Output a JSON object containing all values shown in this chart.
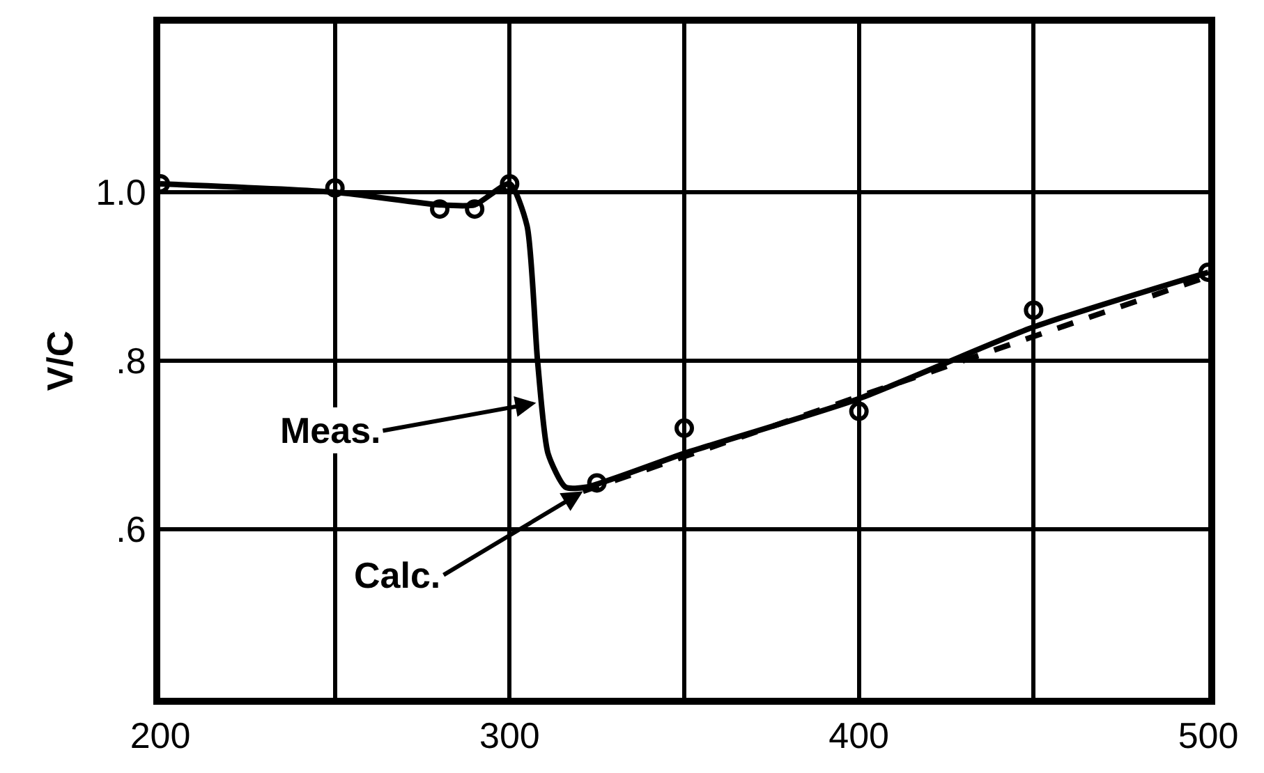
{
  "chart_data": {
    "type": "line",
    "ylabel": "V/C",
    "xlim": [
      200,
      500
    ],
    "ylim": [
      0.4,
      1.2
    ],
    "xticks": [
      200,
      {
        "value": 250,
        "label": null
      },
      300,
      {
        "value": 350,
        "label": null
      },
      400,
      {
        "value": 450,
        "label": null
      },
      500
    ],
    "yticks": [
      {
        "value": 0.6,
        "label": ".6"
      },
      {
        "value": 0.8,
        "label": ".8"
      },
      {
        "value": 1.0,
        "label": "1.0"
      }
    ],
    "grid": true,
    "annotations": [
      {
        "text": "Meas.",
        "x": 307.6,
        "y": 0.75
      },
      {
        "text": "Calc.",
        "x": 321,
        "y": 0.645
      }
    ],
    "series": [
      {
        "color": "#000000",
        "line_style": "solid",
        "x": [
          200,
          250,
          280,
          290,
          300,
          305,
          308,
          311,
          316,
          322,
          350,
          400,
          450,
          500
        ],
        "values": [
          1.01,
          1.0,
          0.985,
          0.985,
          1.01,
          0.96,
          0.8,
          0.69,
          0.65,
          0.65,
          0.69,
          0.755,
          0.84,
          0.905
        ]
      },
      {
        "color": "#000000",
        "line_style": "dashed",
        "x": [
          321,
          500
        ],
        "values": [
          0.645,
          0.9
        ]
      },
      {
        "type": "scatter",
        "color": "#000000",
        "marker": "circle",
        "x": [
          200,
          250,
          280,
          290,
          300,
          325,
          350,
          400,
          450,
          500
        ],
        "values": [
          1.01,
          1.005,
          0.98,
          0.98,
          1.01,
          0.655,
          0.72,
          0.74,
          0.86,
          0.905
        ]
      }
    ]
  }
}
